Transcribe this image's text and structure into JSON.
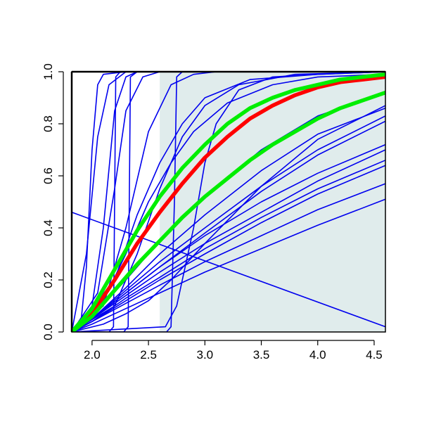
{
  "chart_data": {
    "type": "line",
    "title": "",
    "xlabel": "",
    "ylabel": "",
    "xlim": [
      1.82,
      4.6
    ],
    "ylim": [
      0,
      1
    ],
    "x_ticks": [
      2.0,
      2.5,
      3.0,
      3.5,
      4.0,
      4.5
    ],
    "x_tick_labels": [
      "2.0",
      "2.5",
      "3.0",
      "3.5",
      "4.0",
      "4.5"
    ],
    "y_ticks": [
      0.0,
      0.2,
      0.4,
      0.6,
      0.8,
      1.0
    ],
    "y_tick_labels": [
      "0.0",
      "0.2",
      "0.4",
      "0.6",
      "0.8",
      "1.0"
    ],
    "grid": false,
    "legend": "none",
    "shaded_region": {
      "x_from": 2.6,
      "x_to": 4.6,
      "color": "#e0ecec"
    },
    "series": [
      {
        "role": "reference",
        "color": "#ff0000",
        "width": "thick",
        "points": [
          [
            1.82,
            0
          ],
          [
            2.0,
            0.07
          ],
          [
            2.2,
            0.2
          ],
          [
            2.4,
            0.34
          ],
          [
            2.6,
            0.46
          ],
          [
            2.8,
            0.57
          ],
          [
            3.0,
            0.67
          ],
          [
            3.2,
            0.75
          ],
          [
            3.4,
            0.82
          ],
          [
            3.6,
            0.87
          ],
          [
            3.8,
            0.91
          ],
          [
            4.0,
            0.94
          ],
          [
            4.2,
            0.96
          ],
          [
            4.4,
            0.97
          ],
          [
            4.6,
            0.98
          ]
        ]
      },
      {
        "role": "bound-upper",
        "color": "#00ee00",
        "width": "thick",
        "points": [
          [
            1.82,
            0
          ],
          [
            2.0,
            0.09
          ],
          [
            2.2,
            0.24
          ],
          [
            2.4,
            0.39
          ],
          [
            2.6,
            0.52
          ],
          [
            2.8,
            0.63
          ],
          [
            3.0,
            0.72
          ],
          [
            3.2,
            0.8
          ],
          [
            3.4,
            0.86
          ],
          [
            3.6,
            0.9
          ],
          [
            3.8,
            0.93
          ],
          [
            4.0,
            0.95
          ],
          [
            4.2,
            0.97
          ],
          [
            4.4,
            0.98
          ],
          [
            4.6,
            0.99
          ]
        ]
      },
      {
        "role": "bound-lower",
        "color": "#00ee00",
        "width": "thick",
        "points": [
          [
            1.82,
            0
          ],
          [
            2.0,
            0.06
          ],
          [
            2.2,
            0.16
          ],
          [
            2.4,
            0.26
          ],
          [
            2.6,
            0.35
          ],
          [
            2.8,
            0.44
          ],
          [
            3.0,
            0.52
          ],
          [
            3.2,
            0.59
          ],
          [
            3.4,
            0.66
          ],
          [
            3.6,
            0.72
          ],
          [
            3.8,
            0.77
          ],
          [
            4.0,
            0.82
          ],
          [
            4.2,
            0.86
          ],
          [
            4.4,
            0.89
          ],
          [
            4.6,
            0.92
          ]
        ]
      },
      {
        "role": "sample",
        "color": "#0000ee",
        "width": "thin",
        "points": [
          [
            1.82,
            0.46
          ],
          [
            4.6,
            0.02
          ]
        ]
      },
      {
        "role": "sample",
        "color": "#0000ee",
        "width": "thin",
        "points": [
          [
            1.82,
            0
          ],
          [
            1.9,
            0.03
          ],
          [
            1.95,
            0.25
          ],
          [
            2.0,
            0.7
          ],
          [
            2.05,
            0.95
          ],
          [
            2.1,
            0.99
          ],
          [
            2.3,
            1.0
          ],
          [
            4.6,
            1.0
          ]
        ]
      },
      {
        "role": "sample",
        "color": "#0000ee",
        "width": "thin",
        "points": [
          [
            1.82,
            0
          ],
          [
            1.95,
            0.3
          ],
          [
            2.05,
            0.75
          ],
          [
            2.15,
            0.95
          ],
          [
            2.3,
            1.0
          ],
          [
            4.6,
            1.0
          ]
        ]
      },
      {
        "role": "sample",
        "color": "#0000ee",
        "width": "thin",
        "points": [
          [
            1.82,
            0
          ],
          [
            2.0,
            0.1
          ],
          [
            2.1,
            0.4
          ],
          [
            2.2,
            0.85
          ],
          [
            2.3,
            0.98
          ],
          [
            2.4,
            1.0
          ],
          [
            4.6,
            1.0
          ]
        ]
      },
      {
        "role": "sample",
        "color": "#0000ee",
        "width": "thin",
        "points": [
          [
            1.82,
            0
          ],
          [
            2.05,
            0.15
          ],
          [
            2.2,
            0.55
          ],
          [
            2.3,
            0.85
          ],
          [
            2.45,
            0.98
          ],
          [
            2.6,
            1.0
          ],
          [
            4.6,
            1.0
          ]
        ]
      },
      {
        "role": "sample",
        "color": "#0000ee",
        "width": "thin",
        "points": [
          [
            1.82,
            0
          ],
          [
            2.1,
            0.1
          ],
          [
            2.3,
            0.4
          ],
          [
            2.5,
            0.77
          ],
          [
            2.7,
            0.95
          ],
          [
            2.9,
            0.99
          ],
          [
            3.1,
            1.0
          ],
          [
            4.6,
            1.0
          ]
        ]
      },
      {
        "role": "sample",
        "color": "#0000ee",
        "width": "thin",
        "points": [
          [
            1.82,
            0
          ],
          [
            2.15,
            0.0
          ],
          [
            2.19,
            0.02
          ],
          [
            2.2,
            0.5
          ],
          [
            2.21,
            0.98
          ],
          [
            2.25,
            1.0
          ],
          [
            4.6,
            1.0
          ]
        ]
      },
      {
        "role": "sample",
        "color": "#0000ee",
        "width": "thin",
        "points": [
          [
            1.82,
            0
          ],
          [
            2.28,
            0.0
          ],
          [
            2.32,
            0.02
          ],
          [
            2.33,
            0.5
          ],
          [
            2.34,
            0.98
          ],
          [
            2.4,
            1.0
          ],
          [
            4.6,
            1.0
          ]
        ]
      },
      {
        "role": "sample",
        "color": "#0000ee",
        "width": "thin",
        "points": [
          [
            1.82,
            0
          ],
          [
            2.66,
            0.0
          ],
          [
            2.7,
            0.02
          ],
          [
            2.73,
            0.5
          ],
          [
            2.75,
            0.98
          ],
          [
            2.8,
            1.0
          ],
          [
            4.6,
            1.0
          ]
        ]
      },
      {
        "role": "sample",
        "color": "#0000ee",
        "width": "thin",
        "points": [
          [
            1.82,
            0
          ],
          [
            2.65,
            0.02
          ],
          [
            2.75,
            0.1
          ],
          [
            2.9,
            0.4
          ],
          [
            3.0,
            0.65
          ],
          [
            3.1,
            0.8
          ],
          [
            3.3,
            0.93
          ],
          [
            3.6,
            0.98
          ],
          [
            4.0,
            0.99
          ],
          [
            4.6,
            1.0
          ]
        ]
      },
      {
        "role": "sample",
        "color": "#0000ee",
        "width": "thin",
        "points": [
          [
            1.82,
            0
          ],
          [
            2.1,
            0.12
          ],
          [
            2.3,
            0.3
          ],
          [
            2.5,
            0.5
          ],
          [
            2.7,
            0.65
          ],
          [
            2.9,
            0.77
          ],
          [
            3.2,
            0.88
          ],
          [
            3.6,
            0.95
          ],
          [
            4.0,
            0.98
          ],
          [
            4.6,
            0.99
          ]
        ]
      },
      {
        "role": "sample",
        "color": "#0000ee",
        "width": "thin",
        "points": [
          [
            1.82,
            0
          ],
          [
            2.2,
            0.2
          ],
          [
            2.4,
            0.45
          ],
          [
            2.6,
            0.65
          ],
          [
            2.8,
            0.8
          ],
          [
            3.0,
            0.9
          ],
          [
            3.4,
            0.97
          ],
          [
            4.0,
            0.99
          ],
          [
            4.6,
            1.0
          ]
        ]
      },
      {
        "role": "sample",
        "color": "#0000ee",
        "width": "thin",
        "points": [
          [
            1.82,
            0
          ],
          [
            2.2,
            0.1
          ],
          [
            2.4,
            0.3
          ],
          [
            2.6,
            0.55
          ],
          [
            2.8,
            0.75
          ],
          [
            3.0,
            0.87
          ],
          [
            3.3,
            0.95
          ],
          [
            3.8,
            0.99
          ],
          [
            4.6,
            1.0
          ]
        ]
      },
      {
        "role": "sample",
        "color": "#0000ee",
        "width": "thin",
        "points": [
          [
            1.82,
            0
          ],
          [
            2.0,
            0.05
          ],
          [
            2.3,
            0.16
          ],
          [
            2.6,
            0.27
          ],
          [
            3.0,
            0.4
          ],
          [
            3.5,
            0.56
          ],
          [
            4.0,
            0.7
          ],
          [
            4.6,
            0.83
          ]
        ]
      },
      {
        "role": "sample",
        "color": "#0000ee",
        "width": "thin",
        "points": [
          [
            1.82,
            0
          ],
          [
            2.0,
            0.05
          ],
          [
            2.3,
            0.15
          ],
          [
            2.6,
            0.25
          ],
          [
            3.0,
            0.38
          ],
          [
            3.5,
            0.54
          ],
          [
            4.0,
            0.68
          ],
          [
            4.6,
            0.81
          ]
        ]
      },
      {
        "role": "sample",
        "color": "#0000ee",
        "width": "thin",
        "points": [
          [
            1.82,
            0
          ],
          [
            2.0,
            0.05
          ],
          [
            2.3,
            0.15
          ],
          [
            2.6,
            0.25
          ],
          [
            3.0,
            0.37
          ],
          [
            3.5,
            0.5
          ],
          [
            4.0,
            0.61
          ],
          [
            4.6,
            0.72
          ]
        ]
      },
      {
        "role": "sample",
        "color": "#0000ee",
        "width": "thin",
        "points": [
          [
            1.82,
            0
          ],
          [
            2.0,
            0.05
          ],
          [
            2.3,
            0.14
          ],
          [
            2.6,
            0.23
          ],
          [
            3.0,
            0.34
          ],
          [
            3.5,
            0.46
          ],
          [
            4.0,
            0.58
          ],
          [
            4.6,
            0.7
          ]
        ]
      },
      {
        "role": "sample",
        "color": "#0000ee",
        "width": "thin",
        "points": [
          [
            1.82,
            0
          ],
          [
            2.0,
            0.04
          ],
          [
            2.3,
            0.13
          ],
          [
            2.6,
            0.21
          ],
          [
            3.0,
            0.32
          ],
          [
            3.5,
            0.44
          ],
          [
            4.0,
            0.55
          ],
          [
            4.6,
            0.66
          ]
        ]
      },
      {
        "role": "sample",
        "color": "#0000ee",
        "width": "thin",
        "points": [
          [
            1.82,
            0
          ],
          [
            2.0,
            0.04
          ],
          [
            2.3,
            0.12
          ],
          [
            2.6,
            0.2
          ],
          [
            3.0,
            0.3
          ],
          [
            3.5,
            0.42
          ],
          [
            4.0,
            0.53
          ],
          [
            4.6,
            0.64
          ]
        ]
      },
      {
        "role": "sample",
        "color": "#0000ee",
        "width": "thin",
        "points": [
          [
            1.82,
            0
          ],
          [
            2.0,
            0.04
          ],
          [
            2.3,
            0.11
          ],
          [
            2.6,
            0.18
          ],
          [
            3.0,
            0.27
          ],
          [
            3.5,
            0.37
          ],
          [
            4.0,
            0.47
          ],
          [
            4.6,
            0.57
          ]
        ]
      },
      {
        "role": "sample",
        "color": "#0000ee",
        "width": "thin",
        "points": [
          [
            1.82,
            0
          ],
          [
            2.0,
            0.03
          ],
          [
            2.3,
            0.09
          ],
          [
            2.6,
            0.15
          ],
          [
            3.0,
            0.23
          ],
          [
            3.5,
            0.32
          ],
          [
            4.0,
            0.41
          ],
          [
            4.6,
            0.51
          ]
        ]
      },
      {
        "role": "sample",
        "color": "#0000ee",
        "width": "thin",
        "points": [
          [
            1.82,
            0
          ],
          [
            2.1,
            0.03
          ],
          [
            2.3,
            0.07
          ],
          [
            2.5,
            0.12
          ],
          [
            2.7,
            0.2
          ],
          [
            3.0,
            0.34
          ],
          [
            3.5,
            0.56
          ],
          [
            4.0,
            0.74
          ],
          [
            4.6,
            0.87
          ]
        ]
      },
      {
        "role": "sample",
        "color": "#0000ee",
        "width": "thin",
        "points": [
          [
            1.82,
            0
          ],
          [
            2.0,
            0.05
          ],
          [
            2.3,
            0.17
          ],
          [
            2.6,
            0.3
          ],
          [
            3.0,
            0.45
          ],
          [
            3.5,
            0.62
          ],
          [
            4.0,
            0.76
          ],
          [
            4.6,
            0.86
          ]
        ]
      },
      {
        "role": "sample",
        "color": "#0000ee",
        "width": "thin",
        "points": [
          [
            1.82,
            0
          ],
          [
            2.0,
            0.06
          ],
          [
            2.3,
            0.2
          ],
          [
            2.6,
            0.35
          ],
          [
            3.0,
            0.52
          ],
          [
            3.5,
            0.7
          ],
          [
            4.0,
            0.83
          ],
          [
            4.6,
            0.92
          ]
        ]
      }
    ]
  }
}
